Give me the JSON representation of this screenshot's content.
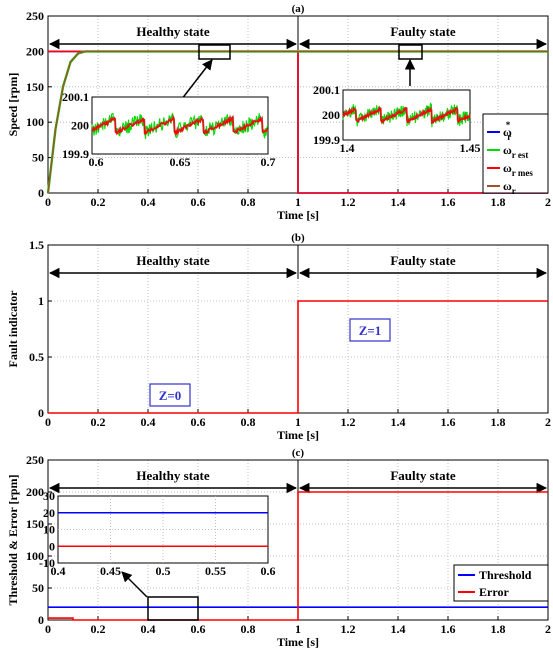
{
  "colors": {
    "reference": "#0000ff",
    "estimated": "#00dd00",
    "measured": "#ff0000",
    "actual": "#a0522d",
    "threshold": "#0000ff",
    "error": "#ff0000",
    "zbox": "#3333cc"
  },
  "chart_data": [
    {
      "type": "line",
      "title": "(a)",
      "xlabel": "Time [s]",
      "ylabel": "Speed [rpm]",
      "xlim": [
        0,
        2
      ],
      "ylim": [
        0,
        250
      ],
      "xticks": [
        "0",
        "0.2",
        "0.4",
        "0.6",
        "0.8",
        "1",
        "1.2",
        "1.4",
        "1.6",
        "1.8",
        "2"
      ],
      "yticks": [
        "0",
        "50",
        "100",
        "150",
        "200",
        "250"
      ],
      "grid": true,
      "legend_position": "right",
      "regions": [
        {
          "label": "Healthy state",
          "x": [
            0,
            1
          ]
        },
        {
          "label": "Faulty state",
          "x": [
            1,
            2
          ]
        }
      ],
      "series": [
        {
          "name": "ω",
          "sup": "*",
          "sub": "r",
          "x": [
            0,
            0.1,
            0.11,
            1,
            1.0,
            2
          ],
          "y": [
            200,
            200,
            200,
            200,
            0,
            0
          ]
        },
        {
          "name": "ω",
          "sup": "",
          "sub": "r est",
          "x": [
            0,
            0.03,
            0.06,
            0.09,
            0.12,
            0.15,
            0.2,
            2
          ],
          "y": [
            0,
            90,
            150,
            185,
            197,
            200,
            200,
            200
          ]
        },
        {
          "name": "ω",
          "sup": "",
          "sub": "r mes",
          "x": [
            0,
            1,
            1.0,
            2
          ],
          "y": [
            200,
            200,
            0,
            0
          ]
        },
        {
          "name": "ω",
          "sup": "",
          "sub": "r",
          "x": [
            0,
            0.03,
            0.06,
            0.09,
            0.12,
            0.15,
            0.2,
            2
          ],
          "y": [
            0,
            90,
            150,
            185,
            197,
            200,
            200,
            200
          ]
        }
      ],
      "insets": [
        {
          "xlim": [
            0.6,
            0.7
          ],
          "ylim": [
            199.9,
            200.1
          ],
          "xticks": [
            "0.6",
            "0.65",
            "0.7"
          ],
          "yticks": [
            "199.9",
            "200",
            "200.1"
          ]
        },
        {
          "xlim": [
            1.4,
            1.45
          ],
          "ylim": [
            199.9,
            200.1
          ],
          "xticks": [
            "1.4",
            "1.45"
          ],
          "yticks": [
            "199.9",
            "200",
            "200.1"
          ]
        }
      ]
    },
    {
      "type": "line",
      "title": "(b)",
      "xlabel": "Time [s]",
      "ylabel": "Fault indicator",
      "xlim": [
        0,
        2
      ],
      "ylim": [
        0,
        1.5
      ],
      "xticks": [
        "0",
        "0.2",
        "0.4",
        "0.6",
        "0.8",
        "1",
        "1.2",
        "1.4",
        "1.6",
        "1.8",
        "2"
      ],
      "yticks": [
        "0",
        "0.5",
        "1",
        "1.5"
      ],
      "grid": true,
      "regions": [
        {
          "label": "Healthy state",
          "x": [
            0,
            1
          ]
        },
        {
          "label": "Faulty state",
          "x": [
            1,
            2
          ]
        }
      ],
      "annotations": [
        "Z=0",
        "Z=1"
      ],
      "series": [
        {
          "x": [
            0,
            1,
            1,
            2
          ],
          "y": [
            0,
            0,
            1,
            1
          ]
        }
      ]
    },
    {
      "type": "line",
      "title": "(c)",
      "xlabel": "Time [s]",
      "ylabel": "Threshold & Error [rpm]",
      "xlim": [
        0,
        2
      ],
      "ylim": [
        0,
        250
      ],
      "xticks": [
        "0",
        "0.2",
        "0.4",
        "0.6",
        "0.8",
        "1",
        "1.2",
        "1.4",
        "1.6",
        "1.8",
        "2"
      ],
      "yticks": [
        "0",
        "50",
        "100",
        "150",
        "200",
        "250"
      ],
      "grid": true,
      "legend_position": "bottom-right",
      "regions": [
        {
          "label": "Healthy state",
          "x": [
            0,
            1
          ]
        },
        {
          "label": "Faulty state",
          "x": [
            1,
            2
          ]
        }
      ],
      "series": [
        {
          "name": "Threshold",
          "x": [
            0,
            2
          ],
          "y": [
            20,
            20
          ]
        },
        {
          "name": "Error",
          "x": [
            0,
            0.1,
            0.1,
            1,
            1,
            2
          ],
          "y": [
            3,
            3,
            0,
            0,
            200,
            200
          ]
        }
      ],
      "inset": {
        "xlim": [
          0.4,
          0.6
        ],
        "ylim": [
          -10,
          30
        ],
        "xticks": [
          "0.4",
          "0.45",
          "0.5",
          "0.55",
          "0.6"
        ],
        "yticks": [
          "-10",
          "0",
          "10",
          "20",
          "30"
        ],
        "series": [
          {
            "name": "Threshold",
            "y": 20
          },
          {
            "name": "Error",
            "y": 0
          }
        ]
      }
    }
  ]
}
